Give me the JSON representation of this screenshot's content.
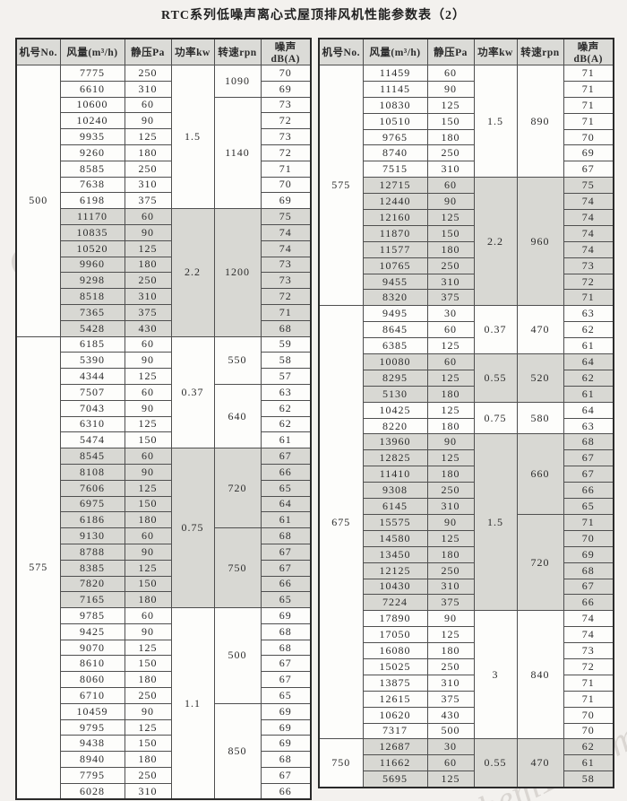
{
  "title": "RTC系列低噪声离心式屋顶排风机性能参数表（2）",
  "watermark": {
    "text": "chem17.com"
  },
  "colors": {
    "page_bg": "#f3f1ee",
    "header_bg": "#dbdbd7",
    "cell_bg": "#fdfdfb",
    "row_shade": "#d8d8d3",
    "border": "#4f4f4f"
  },
  "columns": [
    "机号No.",
    "风量(m³/h)",
    "静压Pa",
    "功率kw",
    "转速rpn",
    "噪声dB(A)"
  ],
  "tables": {
    "left": {
      "groups": [
        {
          "model": "500",
          "powers": [
            {
              "power": "1.5",
              "shaded": false,
              "speeds": [
                {
                  "speed": "1090",
                  "rows": [
                    [
                      "7775",
                      "250",
                      "70"
                    ],
                    [
                      "6610",
                      "310",
                      "69"
                    ]
                  ]
                },
                {
                  "speed": "1140",
                  "rows": [
                    [
                      "10600",
                      "60",
                      "73"
                    ],
                    [
                      "10240",
                      "90",
                      "72"
                    ],
                    [
                      "9935",
                      "125",
                      "73"
                    ],
                    [
                      "9260",
                      "180",
                      "72"
                    ],
                    [
                      "8585",
                      "250",
                      "71"
                    ],
                    [
                      "7638",
                      "310",
                      "70"
                    ],
                    [
                      "6198",
                      "375",
                      "69"
                    ]
                  ]
                }
              ]
            },
            {
              "power": "2.2",
              "shaded": true,
              "speeds": [
                {
                  "speed": "1200",
                  "rows": [
                    [
                      "11170",
                      "60",
                      "75"
                    ],
                    [
                      "10835",
                      "90",
                      "74"
                    ],
                    [
                      "10520",
                      "125",
                      "74"
                    ],
                    [
                      "9960",
                      "180",
                      "73"
                    ],
                    [
                      "9298",
                      "250",
                      "73"
                    ],
                    [
                      "8518",
                      "310",
                      "72"
                    ],
                    [
                      "7365",
                      "375",
                      "71"
                    ],
                    [
                      "5428",
                      "430",
                      "68"
                    ]
                  ]
                }
              ]
            }
          ]
        },
        {
          "model": "575",
          "powers": [
            {
              "power": "0.37",
              "shaded": false,
              "speeds": [
                {
                  "speed": "550",
                  "rows": [
                    [
                      "6185",
                      "60",
                      "59"
                    ],
                    [
                      "5390",
                      "90",
                      "58"
                    ],
                    [
                      "4344",
                      "125",
                      "57"
                    ]
                  ]
                },
                {
                  "speed": "640",
                  "rows": [
                    [
                      "7507",
                      "60",
                      "63"
                    ],
                    [
                      "7043",
                      "90",
                      "62"
                    ],
                    [
                      "6310",
                      "125",
                      "62"
                    ],
                    [
                      "5474",
                      "150",
                      "61"
                    ]
                  ]
                }
              ]
            },
            {
              "power": "0.75",
              "shaded": true,
              "speeds": [
                {
                  "speed": "720",
                  "rows": [
                    [
                      "8545",
                      "60",
                      "67"
                    ],
                    [
                      "8108",
                      "90",
                      "66"
                    ],
                    [
                      "7606",
                      "125",
                      "65"
                    ],
                    [
                      "6975",
                      "150",
                      "64"
                    ],
                    [
                      "6186",
                      "180",
                      "61"
                    ]
                  ]
                },
                {
                  "speed": "750",
                  "rows": [
                    [
                      "9130",
                      "60",
                      "68"
                    ],
                    [
                      "8788",
                      "90",
                      "67"
                    ],
                    [
                      "8385",
                      "125",
                      "67"
                    ],
                    [
                      "7820",
                      "150",
                      "66"
                    ],
                    [
                      "7165",
                      "180",
                      "65"
                    ]
                  ]
                }
              ]
            },
            {
              "power": "1.1",
              "shaded": false,
              "speeds": [
                {
                  "speed": "500",
                  "rows": [
                    [
                      "9785",
                      "60",
                      "69"
                    ],
                    [
                      "9425",
                      "90",
                      "68"
                    ],
                    [
                      "9070",
                      "125",
                      "68"
                    ],
                    [
                      "8610",
                      "150",
                      "67"
                    ],
                    [
                      "8060",
                      "180",
                      "67"
                    ],
                    [
                      "6710",
                      "250",
                      "65"
                    ]
                  ]
                },
                {
                  "speed": "850",
                  "rows": [
                    [
                      "10459",
                      "90",
                      "69"
                    ],
                    [
                      "9795",
                      "125",
                      "69"
                    ],
                    [
                      "9438",
                      "150",
                      "69"
                    ],
                    [
                      "8940",
                      "180",
                      "68"
                    ],
                    [
                      "7795",
                      "250",
                      "67"
                    ],
                    [
                      "6028",
                      "310",
                      "66"
                    ]
                  ]
                }
              ]
            }
          ]
        }
      ]
    },
    "right": {
      "groups": [
        {
          "model": "575",
          "powers": [
            {
              "power": "1.5",
              "shaded": false,
              "speeds": [
                {
                  "speed": "890",
                  "rows": [
                    [
                      "11459",
                      "60",
                      "71"
                    ],
                    [
                      "11145",
                      "90",
                      "71"
                    ],
                    [
                      "10830",
                      "125",
                      "71"
                    ],
                    [
                      "10510",
                      "150",
                      "71"
                    ],
                    [
                      "9765",
                      "180",
                      "70"
                    ],
                    [
                      "8740",
                      "250",
                      "69"
                    ],
                    [
                      "7515",
                      "310",
                      "67"
                    ]
                  ]
                }
              ]
            },
            {
              "power": "2.2",
              "shaded": true,
              "speeds": [
                {
                  "speed": "960",
                  "rows": [
                    [
                      "12715",
                      "60",
                      "75"
                    ],
                    [
                      "12440",
                      "90",
                      "74"
                    ],
                    [
                      "12160",
                      "125",
                      "74"
                    ],
                    [
                      "11870",
                      "150",
                      "74"
                    ],
                    [
                      "11577",
                      "180",
                      "74"
                    ],
                    [
                      "10765",
                      "250",
                      "73"
                    ],
                    [
                      "9455",
                      "310",
                      "72"
                    ],
                    [
                      "8320",
                      "375",
                      "71"
                    ]
                  ]
                }
              ]
            }
          ]
        },
        {
          "model": "675",
          "powers": [
            {
              "power": "0.37",
              "shaded": false,
              "speeds": [
                {
                  "speed": "470",
                  "rows": [
                    [
                      "9495",
                      "30",
                      "63"
                    ],
                    [
                      "8645",
                      "60",
                      "62"
                    ],
                    [
                      "6385",
                      "125",
                      "61"
                    ]
                  ]
                }
              ]
            },
            {
              "power": "0.55",
              "shaded": true,
              "speeds": [
                {
                  "speed": "520",
                  "rows": [
                    [
                      "10080",
                      "60",
                      "64"
                    ],
                    [
                      "8295",
                      "125",
                      "62"
                    ],
                    [
                      "5130",
                      "180",
                      "61"
                    ]
                  ]
                }
              ]
            },
            {
              "power": "0.75",
              "shaded": false,
              "speeds": [
                {
                  "speed": "580",
                  "rows": [
                    [
                      "10425",
                      "125",
                      "64"
                    ],
                    [
                      "8220",
                      "180",
                      "63"
                    ]
                  ]
                }
              ]
            },
            {
              "power": "1.5",
              "shaded": true,
              "speeds": [
                {
                  "speed": "660",
                  "rows": [
                    [
                      "13960",
                      "90",
                      "68"
                    ],
                    [
                      "12825",
                      "125",
                      "67"
                    ],
                    [
                      "11410",
                      "180",
                      "67"
                    ],
                    [
                      "9308",
                      "250",
                      "66"
                    ],
                    [
                      "6145",
                      "310",
                      "65"
                    ]
                  ]
                },
                {
                  "speed": "720",
                  "rows": [
                    [
                      "15575",
                      "90",
                      "71"
                    ],
                    [
                      "14580",
                      "125",
                      "70"
                    ],
                    [
                      "13450",
                      "180",
                      "69"
                    ],
                    [
                      "12125",
                      "250",
                      "68"
                    ],
                    [
                      "10430",
                      "310",
                      "67"
                    ],
                    [
                      "7224",
                      "375",
                      "66"
                    ]
                  ]
                }
              ]
            },
            {
              "power": "3",
              "shaded": false,
              "speeds": [
                {
                  "speed": "840",
                  "rows": [
                    [
                      "17890",
                      "90",
                      "74"
                    ],
                    [
                      "17050",
                      "125",
                      "74"
                    ],
                    [
                      "16080",
                      "180",
                      "73"
                    ],
                    [
                      "15025",
                      "250",
                      "72"
                    ],
                    [
                      "13875",
                      "310",
                      "71"
                    ],
                    [
                      "12615",
                      "375",
                      "71"
                    ],
                    [
                      "10620",
                      "430",
                      "70"
                    ],
                    [
                      "7317",
                      "500",
                      "70"
                    ]
                  ]
                }
              ]
            }
          ]
        },
        {
          "model": "750",
          "powers": [
            {
              "power": "0.55",
              "shaded": true,
              "speeds": [
                {
                  "speed": "470",
                  "rows": [
                    [
                      "12687",
                      "30",
                      "62"
                    ],
                    [
                      "11662",
                      "60",
                      "61"
                    ],
                    [
                      "5695",
                      "125",
                      "58"
                    ]
                  ]
                }
              ]
            }
          ]
        }
      ]
    }
  }
}
